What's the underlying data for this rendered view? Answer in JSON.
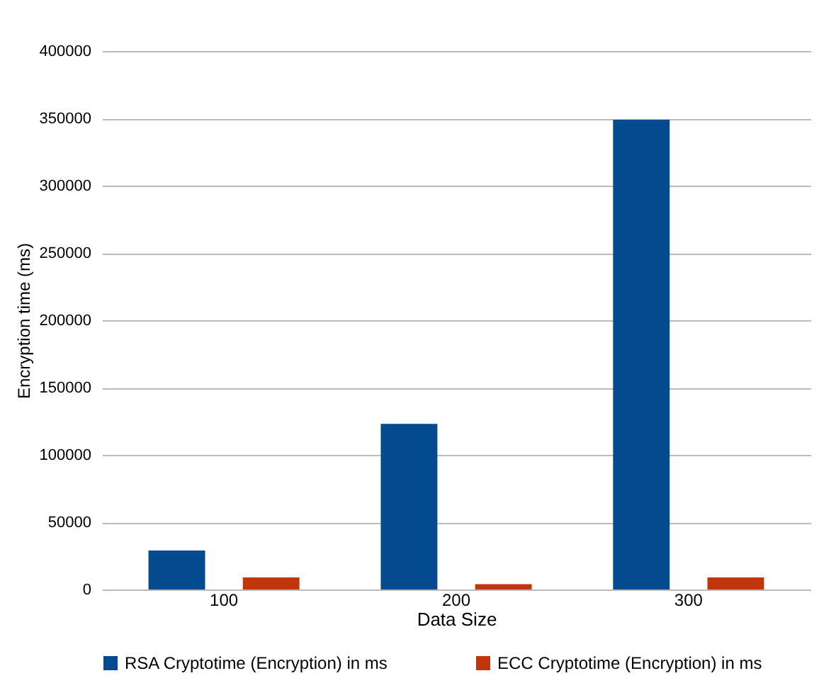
{
  "chart_data": {
    "type": "bar",
    "xlabel": "Data Size",
    "ylabel": "Encryption time (ms)",
    "categories": [
      "100",
      "200",
      "300"
    ],
    "series": [
      {
        "name": "RSA Cryptotime (Encryption) in ms",
        "color": "#034a8f",
        "values": [
          29000,
          123000,
          349000
        ]
      },
      {
        "name": "ECC Cryptotime (Encryption) in ms",
        "color": "#c0360c",
        "values": [
          9000,
          4000,
          9000
        ]
      }
    ],
    "ylim": [
      0,
      400000
    ],
    "yticks": [
      0,
      50000,
      100000,
      150000,
      200000,
      250000,
      300000,
      350000,
      400000
    ],
    "grid": "y",
    "legend": "bottom"
  }
}
